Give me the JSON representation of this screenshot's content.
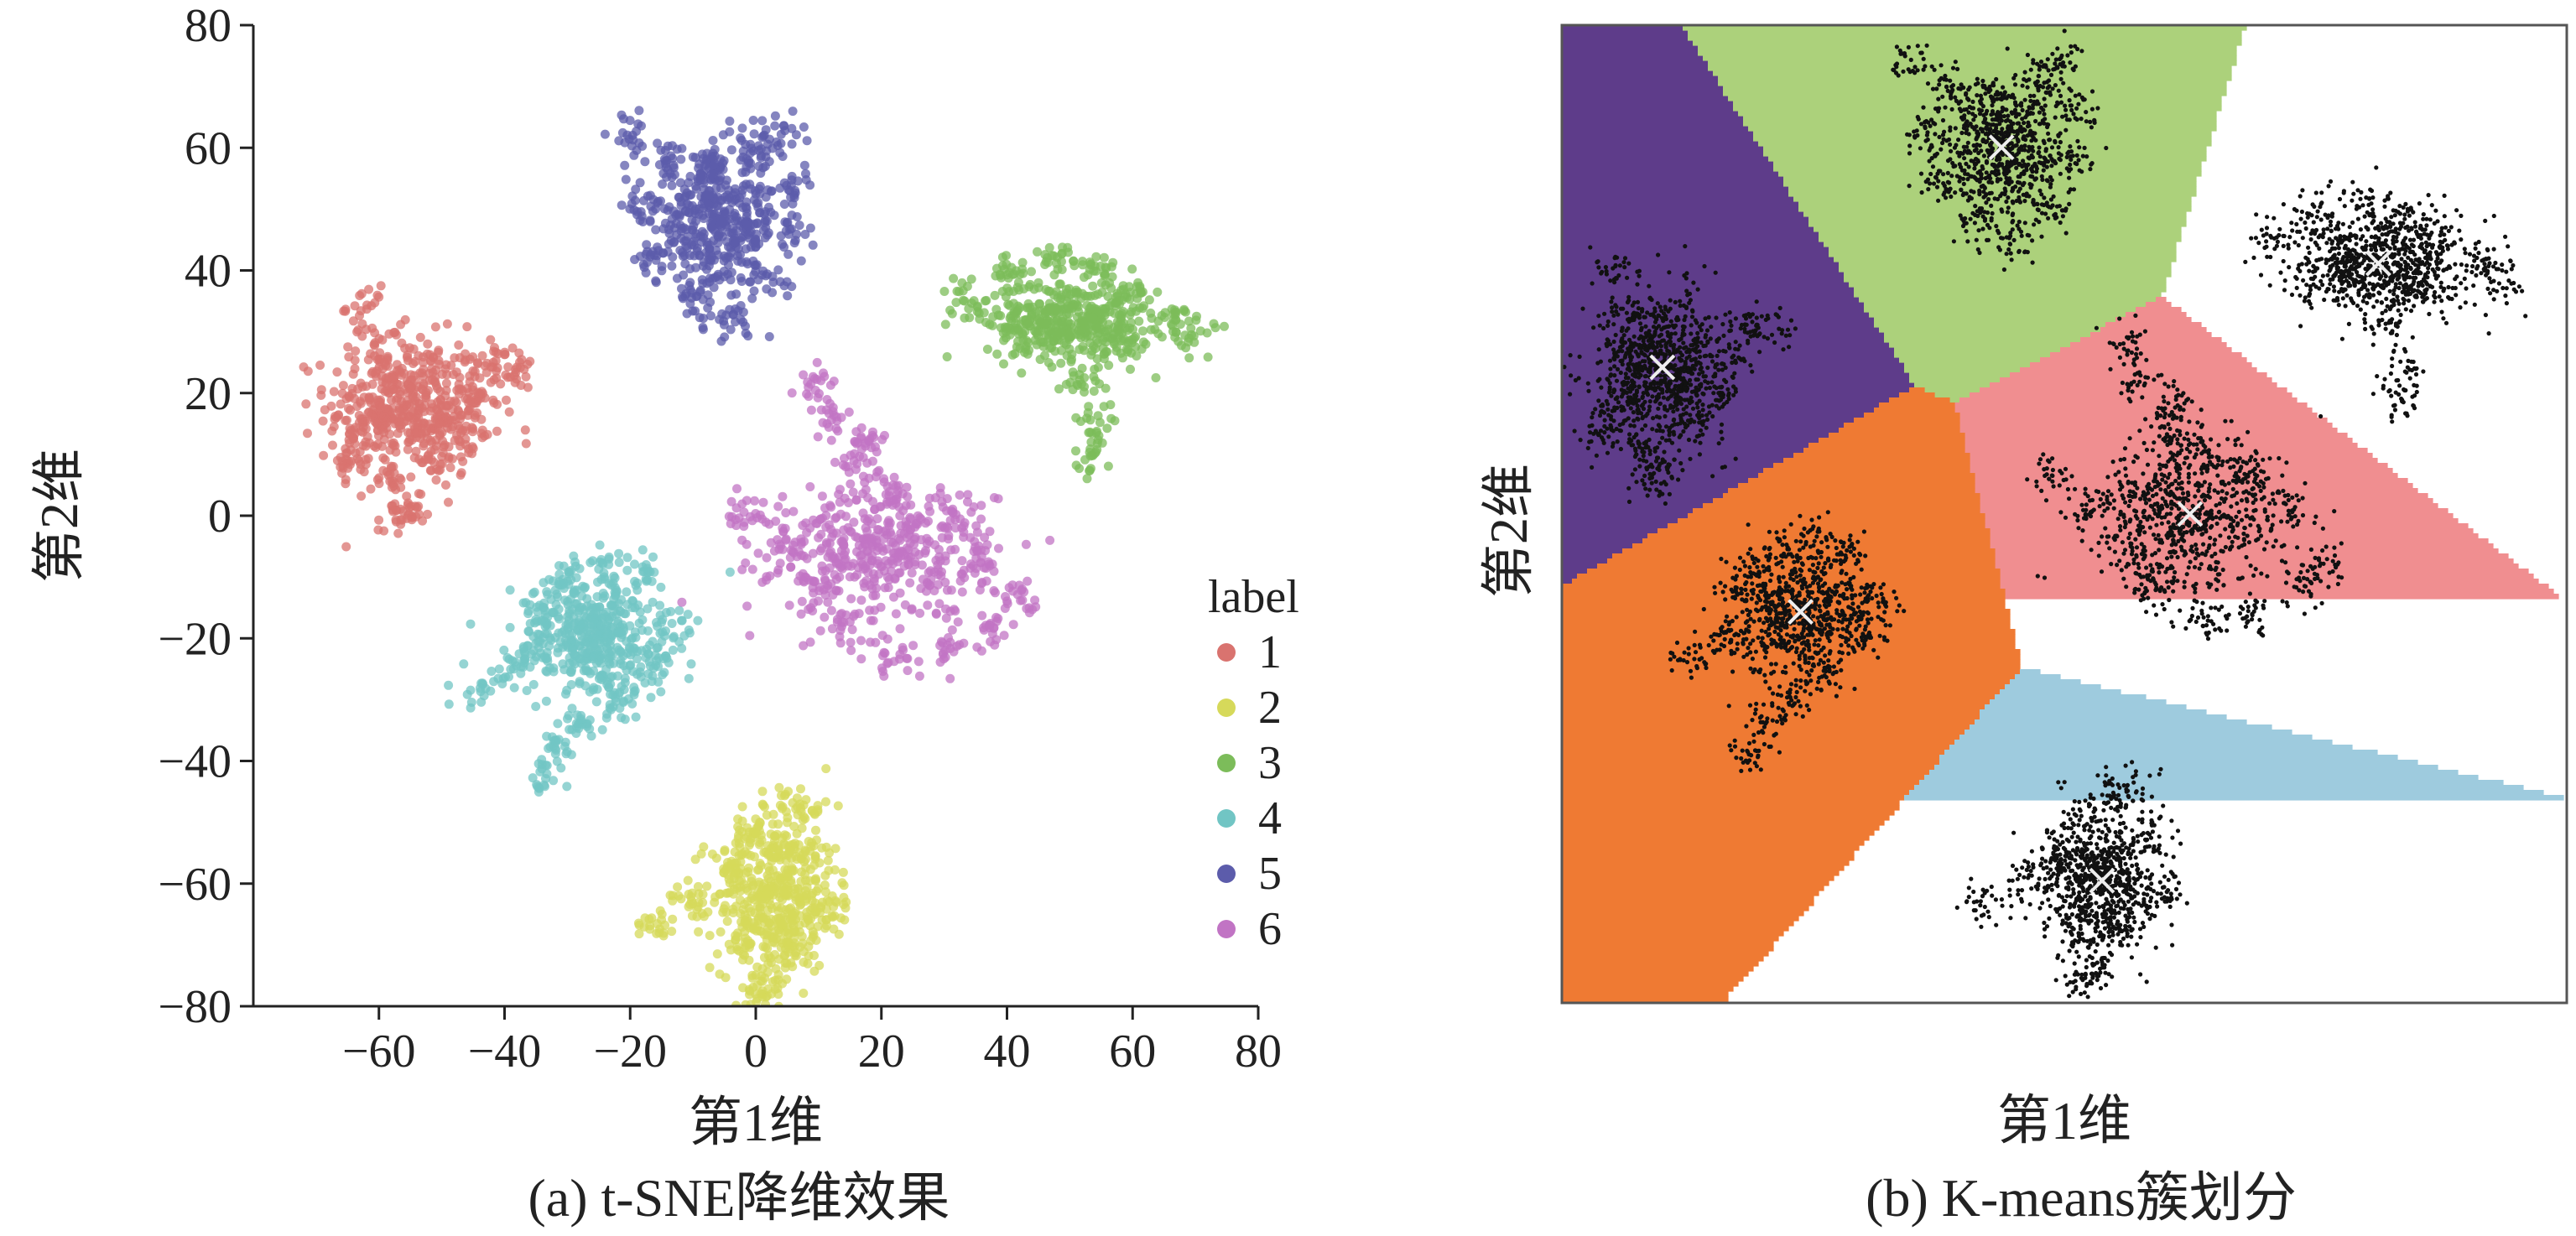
{
  "chart_data": [
    {
      "panel": "a",
      "type": "scatter",
      "caption": "(a) t-SNE降维效果",
      "xlabel": "第1维",
      "ylabel": "第2维",
      "xlim": [
        -80,
        80
      ],
      "ylim": [
        -80,
        80
      ],
      "xticks": [
        "−60",
        "−40",
        "−20",
        "0",
        "20",
        "40",
        "60",
        "80"
      ],
      "yticks": [
        "80",
        "60",
        "40",
        "20",
        "0",
        "−20",
        "−40",
        "−60",
        "−80"
      ],
      "legend": {
        "title": "label",
        "entries": [
          "1",
          "2",
          "3",
          "4",
          "5",
          "6"
        ],
        "placement": "right"
      },
      "series": [
        {
          "name": "1",
          "color": "#d9736f",
          "center": [
            -55,
            18
          ],
          "spread": [
            12,
            10
          ],
          "points": [
            [
              -62,
              34
            ],
            [
              -60,
              28
            ],
            [
              -58,
              22
            ],
            [
              -63,
              12
            ],
            [
              -58,
              6
            ],
            [
              -55,
              2
            ],
            [
              -50,
              8
            ],
            [
              -52,
              15
            ],
            [
              -46,
              14
            ],
            [
              -44,
              20
            ],
            [
              -41,
              25
            ],
            [
              -38,
              24
            ],
            [
              -57,
              -1
            ],
            [
              -65,
              8
            ],
            [
              -60,
              16
            ]
          ]
        },
        {
          "name": "2",
          "color": "#d6d95a",
          "center": [
            3,
            -62
          ],
          "spread": [
            9,
            11
          ],
          "points": [
            [
              -16,
              -66
            ],
            [
              -10,
              -62
            ],
            [
              -4,
              -58
            ],
            [
              0,
              -52
            ],
            [
              4,
              -47
            ],
            [
              8,
              -48
            ],
            [
              10,
              -55
            ],
            [
              12,
              -64
            ],
            [
              6,
              -70
            ],
            [
              2,
              -76
            ],
            [
              0,
              -78
            ],
            [
              -2,
              -70
            ]
          ]
        },
        {
          "name": "3",
          "color": "#7cbc5a",
          "center": [
            50,
            32
          ],
          "spread": [
            12,
            6
          ],
          "points": [
            [
              33,
              36
            ],
            [
              40,
              40
            ],
            [
              48,
              42
            ],
            [
              54,
              40
            ],
            [
              60,
              36
            ],
            [
              66,
              32
            ],
            [
              70,
              29
            ],
            [
              58,
              28
            ],
            [
              52,
              22
            ],
            [
              54,
              15
            ],
            [
              54,
              10
            ],
            [
              44,
              30
            ]
          ]
        },
        {
          "name": "4",
          "color": "#71c5c4",
          "center": [
            -26,
            -20
          ],
          "spread": [
            11,
            9
          ],
          "points": [
            [
              -44,
              -28
            ],
            [
              -38,
              -24
            ],
            [
              -34,
              -16
            ],
            [
              -30,
              -10
            ],
            [
              -24,
              -8
            ],
            [
              -18,
              -10
            ],
            [
              -14,
              -18
            ],
            [
              -16,
              -24
            ],
            [
              -22,
              -30
            ],
            [
              -28,
              -34
            ],
            [
              -32,
              -38
            ],
            [
              -34,
              -43
            ]
          ]
        },
        {
          "name": "5",
          "color": "#5c5cab",
          "center": [
            -6,
            48
          ],
          "spread": [
            9,
            10
          ],
          "points": [
            [
              -20,
              62
            ],
            [
              -14,
              58
            ],
            [
              -8,
              56
            ],
            [
              0,
              60
            ],
            [
              4,
              62
            ],
            [
              6,
              54
            ],
            [
              6,
              46
            ],
            [
              2,
              38
            ],
            [
              -4,
              32
            ],
            [
              -10,
              36
            ],
            [
              -16,
              42
            ],
            [
              -18,
              50
            ]
          ]
        },
        {
          "name": "6",
          "color": "#c174c4",
          "center": [
            20,
            -6
          ],
          "spread": [
            16,
            10
          ],
          "points": [
            [
              10,
              22
            ],
            [
              12,
              16
            ],
            [
              16,
              8
            ],
            [
              -2,
              0
            ],
            [
              4,
              -6
            ],
            [
              10,
              -12
            ],
            [
              14,
              -18
            ],
            [
              22,
              -24
            ],
            [
              30,
              -22
            ],
            [
              38,
              -18
            ],
            [
              42,
              -14
            ],
            [
              36,
              -6
            ],
            [
              30,
              0
            ],
            [
              22,
              4
            ],
            [
              18,
              12
            ]
          ]
        }
      ]
    },
    {
      "panel": "b",
      "type": "scatter",
      "caption": "(b) K-means簇划分",
      "xlabel": "第1维",
      "ylabel": "第2维",
      "xlim": [
        -80,
        80
      ],
      "ylim": [
        -80,
        80
      ],
      "grid": false,
      "region_colors": [
        "#5e3c8a",
        "#acd17b",
        "#a15435",
        "#f08e90",
        "#ef7a33",
        "#9ecbde"
      ],
      "point_color": "#111111",
      "centroid_color": "#eeeeee",
      "centroids": [
        [
          -64,
          24
        ],
        [
          -10,
          60
        ],
        [
          50,
          41
        ],
        [
          20,
          0
        ],
        [
          -42,
          -16
        ],
        [
          6,
          -60
        ]
      ],
      "clusters": [
        {
          "center": [
            -64,
            24
          ],
          "spread": [
            10,
            12
          ]
        },
        {
          "center": [
            -10,
            60
          ],
          "spread": [
            10,
            11
          ]
        },
        {
          "center": [
            50,
            41
          ],
          "spread": [
            13,
            8
          ]
        },
        {
          "center": [
            20,
            0
          ],
          "spread": [
            15,
            13
          ]
        },
        {
          "center": [
            -42,
            -16
          ],
          "spread": [
            11,
            10
          ]
        },
        {
          "center": [
            6,
            -60
          ],
          "spread": [
            9,
            11
          ]
        }
      ]
    }
  ]
}
